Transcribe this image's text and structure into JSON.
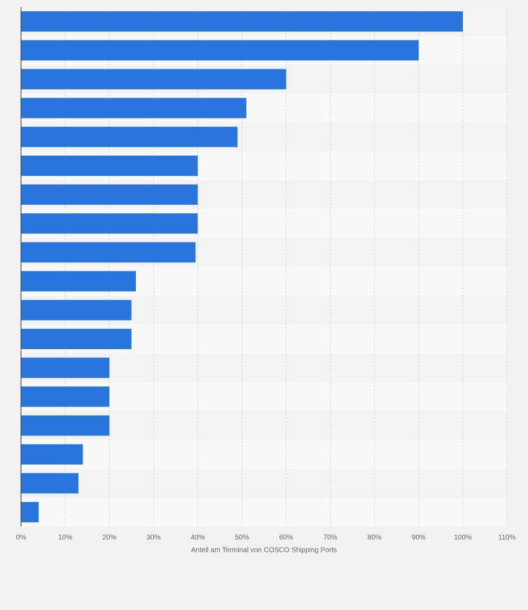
{
  "chart_data": {
    "type": "hbar",
    "categories": [
      null,
      null,
      null,
      null,
      null,
      null,
      null,
      null,
      null,
      null,
      null,
      null,
      null,
      null,
      null,
      null,
      null,
      null
    ],
    "values": [
      100,
      90,
      60,
      51,
      49,
      40,
      40,
      40,
      39.5,
      26,
      25,
      25,
      20,
      20,
      20,
      14,
      13,
      4
    ],
    "color": "#2876dd",
    "x_label": "Anteil am Terminal von COSCO Shipping Ports",
    "xlim": [
      0,
      110
    ],
    "xticks": [
      {
        "value": 0,
        "label": "0%"
      },
      {
        "value": 10,
        "label": "10%"
      },
      {
        "value": 20,
        "label": "20%"
      },
      {
        "value": 30,
        "label": "30%"
      },
      {
        "value": 40,
        "label": "40%"
      },
      {
        "value": 50,
        "label": "50%"
      },
      {
        "value": 60,
        "label": "60%"
      },
      {
        "value": 70,
        "label": "70%"
      },
      {
        "value": 80,
        "label": "80%"
      },
      {
        "value": 90,
        "label": "90%"
      },
      {
        "value": 100,
        "label": "100%"
      },
      {
        "value": 110,
        "label": "110%"
      }
    ],
    "grid": true
  }
}
